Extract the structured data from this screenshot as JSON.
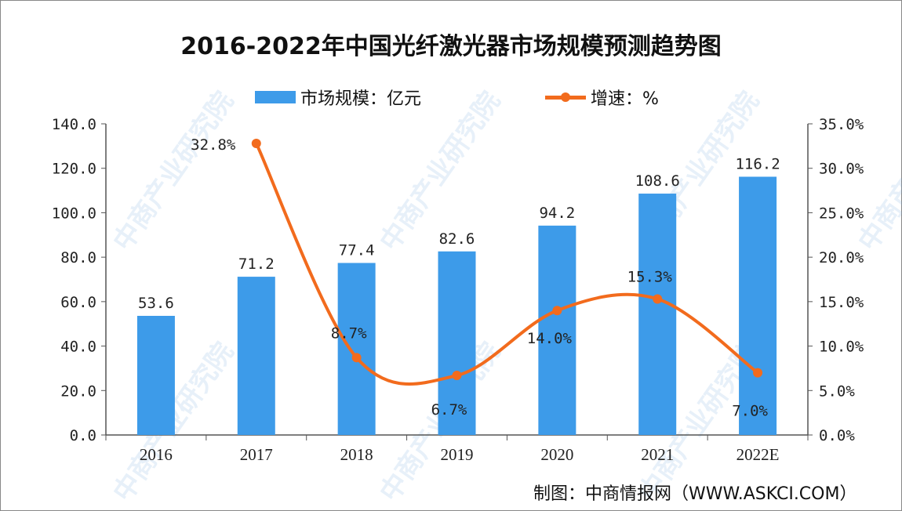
{
  "chart_data": {
    "type": "bar+line",
    "title": "2016-2022年中国光纤激光器市场规模预测趋势图",
    "categories": [
      "2016",
      "2017",
      "2018",
      "2019",
      "2020",
      "2021",
      "2022E"
    ],
    "series": [
      {
        "name": "市场规模：亿元",
        "type": "bar",
        "axis": "left",
        "color": "#3d9be9",
        "values": [
          53.6,
          71.2,
          77.4,
          82.6,
          94.2,
          108.6,
          116.2
        ],
        "labels": [
          "53.6",
          "71.2",
          "77.4",
          "82.6",
          "94.2",
          "108.6",
          "116.2"
        ]
      },
      {
        "name": "增速：%",
        "type": "line",
        "axis": "right",
        "color": "#f26b1d",
        "smooth": true,
        "x": [
          "2017",
          "2018",
          "2019",
          "2020",
          "2021",
          "2022E"
        ],
        "values": [
          32.8,
          8.7,
          6.7,
          14.0,
          15.3,
          7.0
        ],
        "labels": [
          "32.8%",
          "8.7%",
          "6.7%",
          "14.0%",
          "15.3%",
          "7.0%"
        ]
      }
    ],
    "y_left": {
      "range": [
        0,
        140
      ],
      "ticks": [
        "0.0",
        "20.0",
        "40.0",
        "60.0",
        "80.0",
        "100.0",
        "120.0",
        "140.0"
      ]
    },
    "y_right": {
      "range": [
        0,
        35
      ],
      "ticks": [
        "0.0%",
        "5.0%",
        "10.0%",
        "15.0%",
        "20.0%",
        "25.0%",
        "30.0%",
        "35.0%"
      ]
    },
    "grid": false,
    "legend_placement": "top-center"
  },
  "source": "制图：中商情报网（WWW.ASKCI.COM）",
  "watermark": "中商产业研究院"
}
